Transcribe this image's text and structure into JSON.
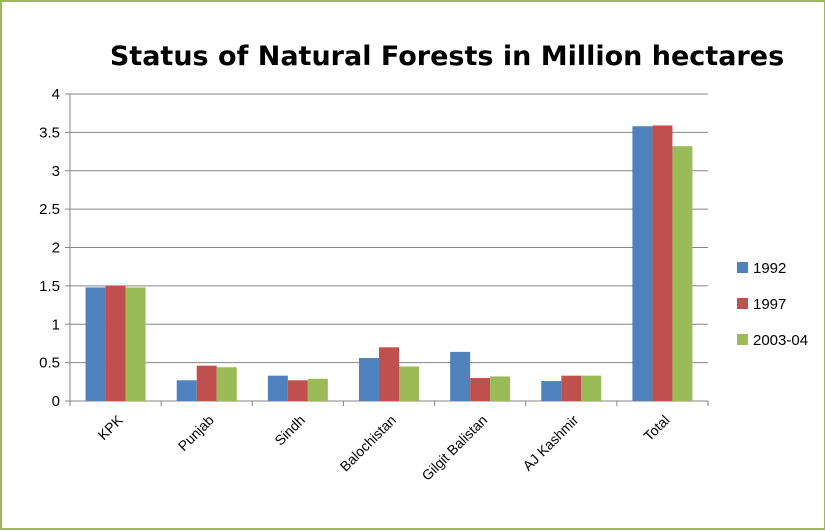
{
  "chart_data": {
    "type": "bar",
    "title": "Status of Natural Forests in Million hectares",
    "xlabel": "",
    "ylabel": "",
    "categories": [
      "KPK",
      "Punjab",
      "Sindh",
      "Balochistan",
      "Gilgit Balistan",
      "AJ Kashmir",
      "Total"
    ],
    "series": [
      {
        "name": "1992",
        "color": "#4f81bd",
        "values": [
          1.48,
          0.27,
          0.33,
          0.56,
          0.64,
          0.26,
          3.58
        ]
      },
      {
        "name": "1997",
        "color": "#c0504d",
        "values": [
          1.5,
          0.46,
          0.27,
          0.7,
          0.3,
          0.33,
          3.59
        ]
      },
      {
        "name": "2003-04",
        "color": "#9bbb59",
        "values": [
          1.48,
          0.44,
          0.29,
          0.45,
          0.32,
          0.33,
          3.32
        ]
      }
    ],
    "ylim": [
      0,
      4
    ],
    "yticks": [
      "0",
      "0.5",
      "1",
      "1.5",
      "2",
      "2.5",
      "3",
      "3.5",
      "4"
    ],
    "grid": true,
    "legend": "right"
  }
}
